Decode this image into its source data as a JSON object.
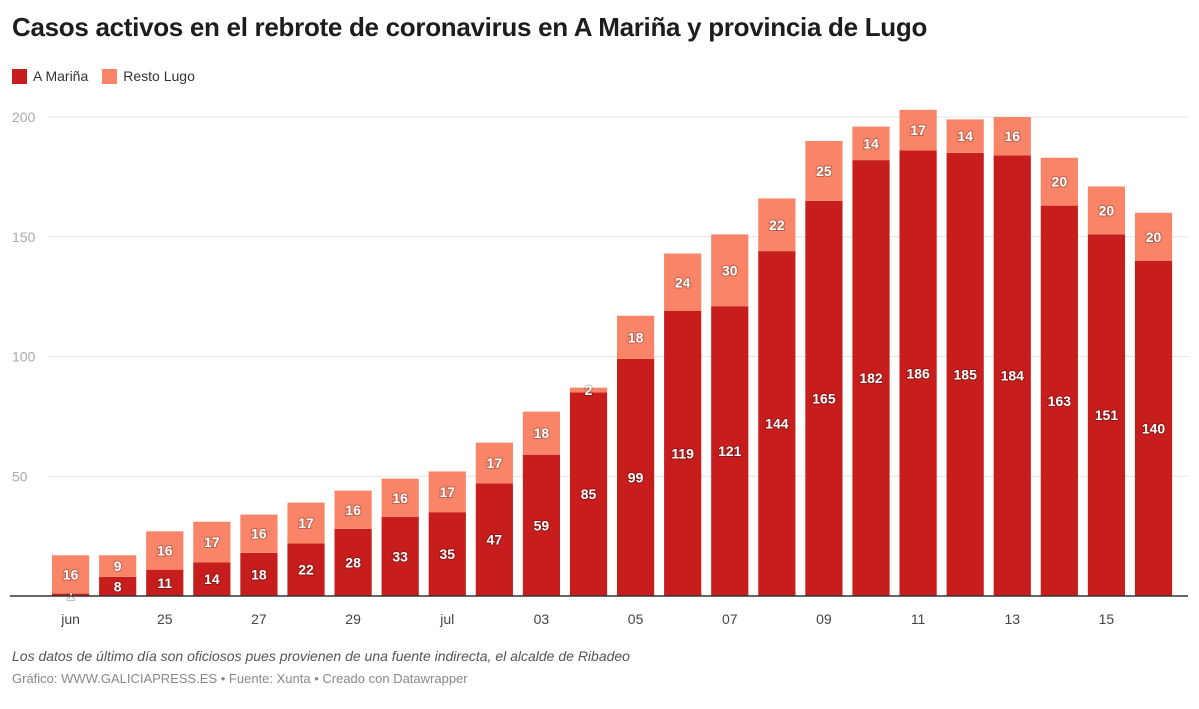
{
  "chart_data": {
    "type": "bar",
    "stacked": true,
    "title": "Casos activos en el rebrote de coronavirus en A Mariña y provincia de Lugo",
    "x_tick_labels": [
      "jun",
      "",
      "25",
      "",
      "27",
      "",
      "29",
      "",
      "jul",
      "",
      "03",
      "",
      "05",
      "",
      "07",
      "",
      "09",
      "",
      "11",
      "",
      "13",
      "",
      "15",
      ""
    ],
    "series": [
      {
        "name": "A Mariña",
        "color": "#c71e1d",
        "values": [
          1,
          8,
          11,
          14,
          18,
          22,
          28,
          33,
          35,
          47,
          59,
          85,
          99,
          119,
          121,
          144,
          165,
          182,
          186,
          185,
          184,
          163,
          151,
          140
        ]
      },
      {
        "name": "Resto Lugo",
        "color": "#fa8468",
        "values": [
          16,
          9,
          16,
          17,
          16,
          17,
          16,
          16,
          17,
          17,
          18,
          2,
          18,
          24,
          30,
          22,
          25,
          14,
          17,
          14,
          16,
          20,
          20,
          20
        ]
      }
    ],
    "ylim": [
      0,
      200
    ],
    "y_ticks": [
      50,
      100,
      150,
      200
    ],
    "grid": true,
    "legend": "top-left",
    "xlabel": "",
    "ylabel": ""
  },
  "footer": {
    "note": "Los datos de último día son oficiosos pues provienen de una fuente indirecta, el alcalde de Ribadeo",
    "credit": "Gráfico: WWW.GALICIAPRESS.ES • Fuente: Xunta • Creado con Datawrapper"
  }
}
